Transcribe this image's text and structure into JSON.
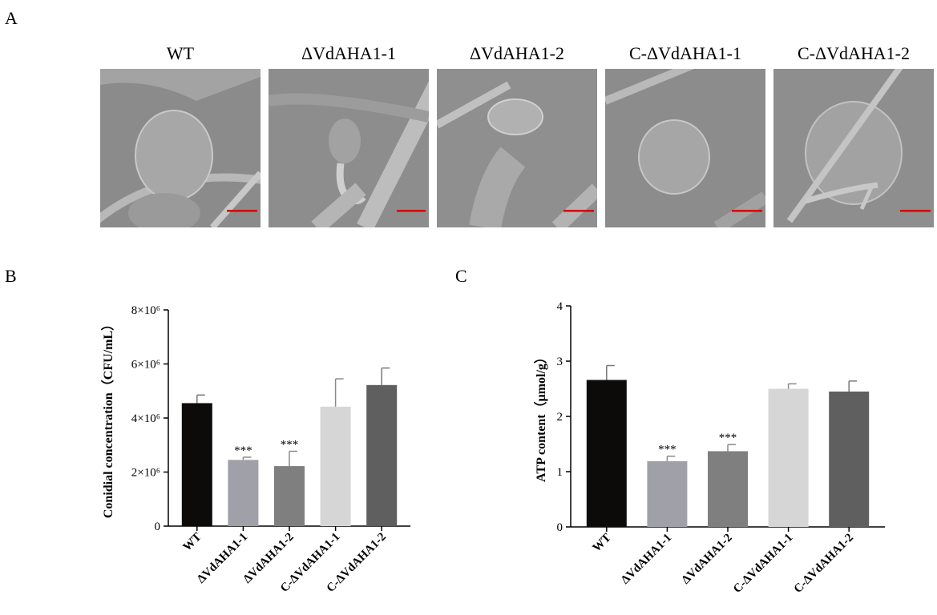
{
  "panels": {
    "a_letter": "A",
    "b_letter": "B",
    "c_letter": "C"
  },
  "sem_images": [
    {
      "label": "WT"
    },
    {
      "label": "ΔVdAHA1-1"
    },
    {
      "label": "ΔVdAHA1-2"
    },
    {
      "label": "C-ΔVdAHA1-1"
    },
    {
      "label": "C-ΔVdAHA1-2"
    }
  ],
  "scale_bar_color": "#d40000",
  "chart_data": [
    {
      "type": "bar",
      "panel": "B",
      "title": "",
      "xlabel": "",
      "ylabel": "Conidial concentration（CFU/mL）",
      "categories": [
        "WT",
        "ΔVdAHA1-1",
        "ΔVdAHA1-2",
        "C-ΔVdAHA1-1",
        "C-ΔVdAHA1-2"
      ],
      "values": [
        4550000.0,
        2450000.0,
        2220000.0,
        4420000.0,
        5220000.0
      ],
      "errors": [
        300000.0,
        100000.0,
        550000.0,
        1030000.0,
        630000.0
      ],
      "significance": [
        "",
        "***",
        "***",
        "",
        ""
      ],
      "colors": [
        "#0d0a0a",
        "#a0a0a8",
        "#7f7f7f",
        "#d6d6d6",
        "#5f5f5f"
      ],
      "ylim": [
        0,
        8000000.0
      ],
      "ytick_values": [
        0,
        2000000.0,
        4000000.0,
        6000000.0,
        8000000.0
      ],
      "ytick_labels": [
        "0",
        "2×10⁶",
        "4×10⁶",
        "6×10⁶",
        "8×10⁶"
      ],
      "grid": false
    },
    {
      "type": "bar",
      "panel": "C",
      "title": "",
      "xlabel": "",
      "ylabel": "ATP content（μmol/g）",
      "categories": [
        "WT",
        "ΔVdAHA1-1",
        "ΔVdAHA1-2",
        "C-ΔVdAHA1-1",
        "C-ΔVdAHA1-2"
      ],
      "values": [
        2.66,
        1.19,
        1.37,
        2.5,
        2.45
      ],
      "errors": [
        0.26,
        0.09,
        0.12,
        0.09,
        0.19
      ],
      "significance": [
        "",
        "***",
        "***",
        "",
        ""
      ],
      "colors": [
        "#0d0a0a",
        "#a0a0a8",
        "#7f7f7f",
        "#d6d6d6",
        "#5f5f5f"
      ],
      "ylim": [
        0,
        4
      ],
      "ytick_values": [
        0,
        1,
        2,
        3,
        4
      ],
      "ytick_labels": [
        "0",
        "1",
        "2",
        "3",
        "4"
      ],
      "grid": false
    }
  ]
}
